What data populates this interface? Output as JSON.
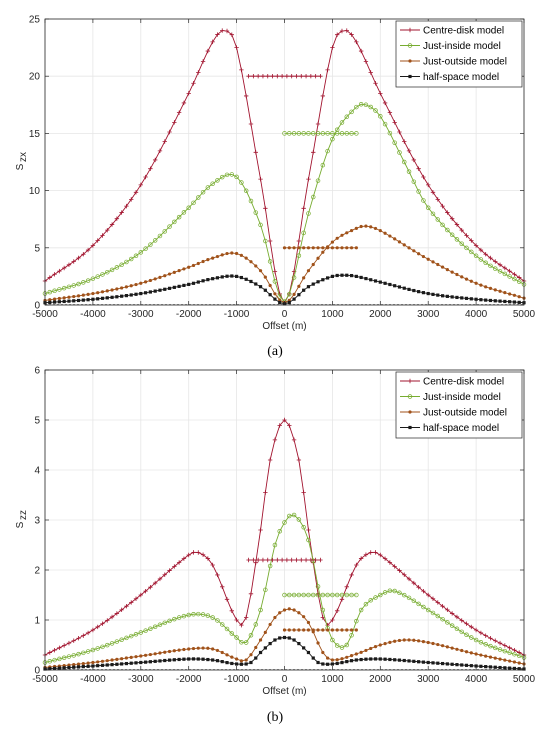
{
  "colors": {
    "centre": "#a2142f",
    "inside": "#77ac30",
    "outside": "#a0521a",
    "half": "#1a1a1a",
    "grid": "#e6e6e6",
    "axis": "#262626"
  },
  "chart_data": [
    {
      "type": "line",
      "panel_caption": "(a)",
      "xlabel": "Offset (m)",
      "ylabel_main": "S",
      "ylabel_sub": "zx",
      "xlim": [
        -5000,
        5000
      ],
      "ylim": [
        0,
        25
      ],
      "xticks": [
        -5000,
        -4000,
        -3000,
        -2000,
        -1000,
        0,
        1000,
        2000,
        3000,
        4000,
        5000
      ],
      "yticks": [
        0,
        5,
        10,
        15,
        20,
        25
      ],
      "grid": true,
      "legend_position": "top-right",
      "series": [
        {
          "name": "Centre-disk model",
          "key": "centre",
          "marker": "plus",
          "x": [
            -5000,
            -4000,
            -3000,
            -2000,
            -1500,
            -1250,
            -1000,
            -500,
            0,
            500,
            1000,
            1250,
            1500,
            2000,
            3000,
            4000,
            5000
          ],
          "y": [
            2.1,
            5.2,
            10.5,
            18.5,
            23.0,
            24.0,
            22.5,
            11.0,
            0.2,
            11.0,
            22.5,
            24.0,
            23.0,
            18.5,
            10.5,
            5.2,
            2.1
          ]
        },
        {
          "name": "Just-inside model",
          "key": "inside",
          "marker": "circle",
          "x": [
            -5000,
            -4000,
            -3000,
            -2000,
            -1500,
            -1000,
            -500,
            0,
            500,
            1000,
            1500,
            1700,
            2000,
            2500,
            3000,
            4000,
            5000
          ],
          "y": [
            1.0,
            2.3,
            4.6,
            8.5,
            10.6,
            11.2,
            7.0,
            0.3,
            8.0,
            14.5,
            17.3,
            17.5,
            16.5,
            12.5,
            8.5,
            4.3,
            1.8
          ]
        },
        {
          "name": "Just-outside model",
          "key": "outside",
          "marker": "dot",
          "x": [
            -5000,
            -4000,
            -3000,
            -2000,
            -1500,
            -1000,
            -500,
            0,
            500,
            1000,
            1500,
            1700,
            2000,
            3000,
            4000,
            5000
          ],
          "y": [
            0.4,
            1.0,
            1.9,
            3.3,
            4.1,
            4.5,
            3.0,
            0.2,
            3.0,
            5.5,
            6.7,
            6.9,
            6.5,
            4.0,
            1.9,
            0.6
          ]
        },
        {
          "name": "half-space model",
          "key": "half",
          "marker": "square",
          "x": [
            -5000,
            -4000,
            -3000,
            -2000,
            -1500,
            -1000,
            -500,
            0,
            500,
            1000,
            1300,
            1500,
            2000,
            3000,
            4000,
            5000
          ],
          "y": [
            0.2,
            0.5,
            1.0,
            1.8,
            2.3,
            2.5,
            1.6,
            0.1,
            1.6,
            2.5,
            2.6,
            2.5,
            2.0,
            1.0,
            0.5,
            0.2
          ]
        }
      ],
      "disks": [
        {
          "key": "centre",
          "marker": "plus",
          "x": [
            -750,
            750
          ],
          "y": 20
        },
        {
          "key": "inside",
          "marker": "circle",
          "x": [
            0,
            1500
          ],
          "y": 15
        },
        {
          "key": "outside",
          "marker": "dot",
          "x": [
            0,
            1500
          ],
          "y": 5
        }
      ]
    },
    {
      "type": "line",
      "panel_caption": "(b)",
      "xlabel": "Offset (m)",
      "ylabel_main": "S",
      "ylabel_sub": "zz",
      "xlim": [
        -5000,
        5000
      ],
      "ylim": [
        0,
        6
      ],
      "xticks": [
        -5000,
        -4000,
        -3000,
        -2000,
        -1000,
        0,
        1000,
        2000,
        3000,
        4000,
        5000
      ],
      "yticks": [
        0,
        1,
        2,
        3,
        4,
        5,
        6
      ],
      "grid": true,
      "legend_position": "top-right",
      "series": [
        {
          "name": "Centre-disk model",
          "key": "centre",
          "marker": "plus",
          "x": [
            -5000,
            -4000,
            -3000,
            -2000,
            -1800,
            -1500,
            -1000,
            -800,
            -500,
            -300,
            0,
            300,
            500,
            800,
            1000,
            1500,
            1800,
            2000,
            3000,
            4000,
            5000
          ],
          "y": [
            0.3,
            0.8,
            1.5,
            2.3,
            2.35,
            2.1,
            1.0,
            1.05,
            2.8,
            4.2,
            5.0,
            4.2,
            2.8,
            1.05,
            1.0,
            2.1,
            2.35,
            2.3,
            1.5,
            0.8,
            0.3
          ]
        },
        {
          "name": "Just-inside model",
          "key": "inside",
          "marker": "circle",
          "x": [
            -5000,
            -4000,
            -3000,
            -2000,
            -1500,
            -1000,
            -800,
            -500,
            -200,
            0,
            200,
            500,
            800,
            1000,
            1300,
            1600,
            2000,
            2300,
            3000,
            4000,
            5000
          ],
          "y": [
            0.15,
            0.4,
            0.75,
            1.1,
            1.05,
            0.65,
            0.55,
            1.2,
            2.5,
            2.95,
            3.1,
            2.6,
            1.2,
            0.6,
            0.5,
            1.2,
            1.5,
            1.58,
            1.2,
            0.6,
            0.25
          ]
        },
        {
          "name": "Just-outside model",
          "key": "outside",
          "marker": "dot",
          "x": [
            -5000,
            -4000,
            -3000,
            -2000,
            -1500,
            -1000,
            -800,
            -500,
            -200,
            0,
            200,
            500,
            800,
            1000,
            1500,
            2000,
            2500,
            3000,
            4000,
            5000
          ],
          "y": [
            0.05,
            0.15,
            0.28,
            0.42,
            0.42,
            0.22,
            0.2,
            0.6,
            1.05,
            1.2,
            1.2,
            0.95,
            0.35,
            0.2,
            0.32,
            0.5,
            0.6,
            0.55,
            0.32,
            0.12
          ]
        },
        {
          "name": "half-space model",
          "key": "half",
          "marker": "square",
          "x": [
            -5000,
            -4000,
            -3000,
            -2000,
            -1500,
            -1000,
            -700,
            -500,
            -200,
            0,
            200,
            500,
            700,
            1000,
            1500,
            2000,
            3000,
            4000,
            5000
          ],
          "y": [
            0.02,
            0.08,
            0.15,
            0.22,
            0.2,
            0.12,
            0.15,
            0.35,
            0.6,
            0.65,
            0.6,
            0.35,
            0.15,
            0.12,
            0.2,
            0.22,
            0.15,
            0.08,
            0.02
          ]
        }
      ],
      "disks": [
        {
          "key": "centre",
          "marker": "plus",
          "x": [
            -750,
            750
          ],
          "y": 2.2
        },
        {
          "key": "inside",
          "marker": "circle",
          "x": [
            0,
            1500
          ],
          "y": 1.5
        },
        {
          "key": "outside",
          "marker": "dot",
          "x": [
            0,
            1500
          ],
          "y": 0.8
        }
      ]
    }
  ]
}
